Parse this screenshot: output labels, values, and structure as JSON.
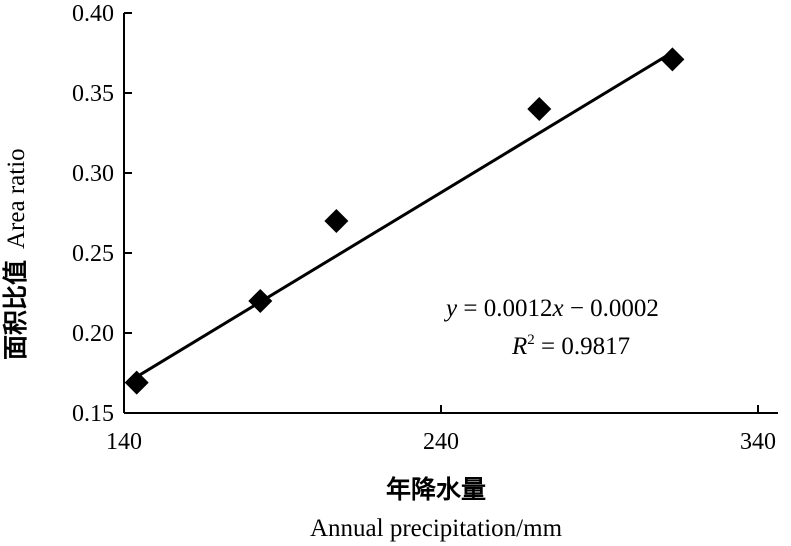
{
  "chart_data": {
    "type": "scatter",
    "xlabel_cn": "年降水量",
    "xlabel_en": "Annual precipitation/mm",
    "ylabel_cn": "面积比值",
    "ylabel_en": "Area ratio",
    "xlim": [
      140,
      340
    ],
    "ylim": [
      0.15,
      0.4
    ],
    "x_ticks": [
      "140",
      "240",
      "340"
    ],
    "y_ticks": [
      "0.15",
      "0.20",
      "0.25",
      "0.30",
      "0.35",
      "0.40"
    ],
    "grid": false,
    "marker": "diamond",
    "points": [
      {
        "x": 144,
        "y": 0.169
      },
      {
        "x": 183,
        "y": 0.22
      },
      {
        "x": 207,
        "y": 0.27
      },
      {
        "x": 271,
        "y": 0.34
      },
      {
        "x": 313,
        "y": 0.371
      }
    ],
    "trendline": {
      "slope": 0.0012,
      "intercept": -0.0002,
      "x_from": 144,
      "x_to": 311
    },
    "equation": {
      "y_var": "y",
      "eq_rest": " = 0.0012",
      "x_var": "x",
      "eq_tail": " −  0.0002",
      "r_var": "R",
      "r_sup": "2",
      "r_rest": " = 0.9817"
    }
  }
}
